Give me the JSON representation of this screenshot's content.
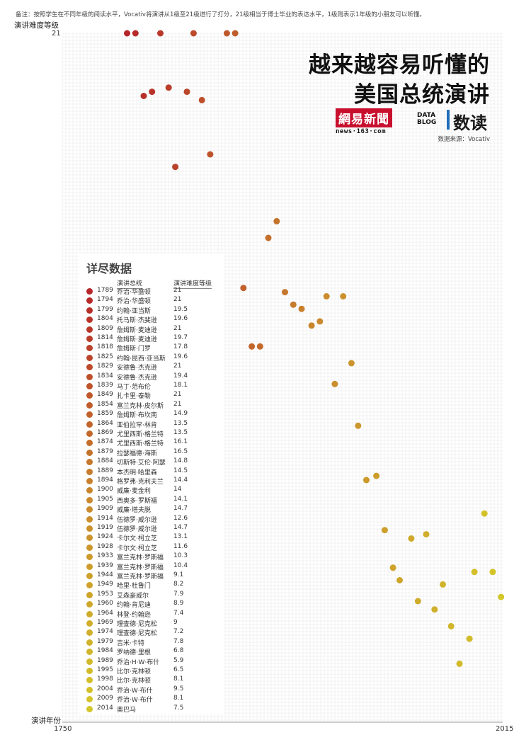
{
  "note": "备注：按照学生在不同年级的阅读水平，Vocativ将演讲从1级至21级进行了打分，21级相当于博士毕业的表达水平，1级则表示1年级的小朋友可以听懂。",
  "title_line1": "越来越容易听懂的",
  "title_line2": "美国总统演讲",
  "logo_cn": "網易新聞",
  "logo_en": "news·163·com",
  "datablog_text": "DATA BLOG",
  "shudu": "数读",
  "source": "数据来源：Vocativ",
  "panel": {
    "title": "详尽数据",
    "col_president": "演讲总统",
    "col_level": "演讲难度等级"
  },
  "colors": {
    "high": "#b5262a",
    "mid": "#c9892c",
    "low": "#d4c72a"
  },
  "chart_data": {
    "type": "scatter",
    "ylabel": "演讲难度等级",
    "xlabel": "演讲年份",
    "xlim": [
      1750,
      2015
    ],
    "x_tick_labels": [
      "1750",
      "2015"
    ],
    "y_tick_labels": [
      "21"
    ],
    "grid": true,
    "points": [
      {
        "year": 1789,
        "president": "乔治·华盛顿",
        "level": "21"
      },
      {
        "year": 1794,
        "president": "乔治·华盛顿",
        "level": "21"
      },
      {
        "year": 1799,
        "president": "约翰·亚当斯",
        "level": "19.5"
      },
      {
        "year": 1804,
        "president": "托马斯·杰斐逊",
        "level": "19.6"
      },
      {
        "year": 1809,
        "president": "詹姆斯·麦迪逊",
        "level": "21"
      },
      {
        "year": 1814,
        "president": "詹姆斯·麦迪逊",
        "level": "19.7"
      },
      {
        "year": 1818,
        "president": "詹姆斯·门罗",
        "level": "17.8"
      },
      {
        "year": 1825,
        "president": "约翰·昆西·亚当斯",
        "level": "19.6"
      },
      {
        "year": 1829,
        "president": "安德鲁·杰克逊",
        "level": "21"
      },
      {
        "year": 1834,
        "president": "安德鲁·杰克逊",
        "level": "19.4"
      },
      {
        "year": 1839,
        "president": "马丁·范布伦",
        "level": "18.1"
      },
      {
        "year": 1849,
        "president": "扎卡里·泰勒",
        "level": "21"
      },
      {
        "year": 1854,
        "president": "富兰克林·皮尔斯",
        "level": "21"
      },
      {
        "year": 1859,
        "president": "詹姆斯·布坎南",
        "level": "14.9"
      },
      {
        "year": 1864,
        "president": "亚伯拉罕·林肯",
        "level": "13.5"
      },
      {
        "year": 1869,
        "president": "尤里西斯·格兰特",
        "level": "13.5"
      },
      {
        "year": 1874,
        "president": "尤里西斯·格兰特",
        "level": "16.1"
      },
      {
        "year": 1879,
        "president": "拉瑟福德·海斯",
        "level": "16.5"
      },
      {
        "year": 1884,
        "president": "切斯特·艾伦·阿瑟",
        "level": "14.8"
      },
      {
        "year": 1889,
        "president": "本杰明·哈里森",
        "level": "14.5"
      },
      {
        "year": 1894,
        "president": "格罗弗·克利夫兰",
        "level": "14.4"
      },
      {
        "year": 1900,
        "president": "威廉·麦金利",
        "level": "14"
      },
      {
        "year": 1905,
        "president": "西奥多·罗斯福",
        "level": "14.1"
      },
      {
        "year": 1909,
        "president": "威廉·塔夫脱",
        "level": "14.7"
      },
      {
        "year": 1914,
        "president": "伍德罗·威尔逊",
        "level": "12.6"
      },
      {
        "year": 1919,
        "president": "伍德罗·威尔逊",
        "level": "14.7"
      },
      {
        "year": 1924,
        "president": "卡尔文·柯立芝",
        "level": "13.1"
      },
      {
        "year": 1928,
        "president": "卡尔文·柯立芝",
        "level": "11.6"
      },
      {
        "year": 1933,
        "president": "富兰克林·罗斯福",
        "level": "10.3"
      },
      {
        "year": 1939,
        "president": "富兰克林·罗斯福",
        "level": "10.4"
      },
      {
        "year": 1944,
        "president": "富兰克林·罗斯福",
        "level": "9.1"
      },
      {
        "year": 1949,
        "president": "哈里·杜鲁门",
        "level": "8.2"
      },
      {
        "year": 1953,
        "president": "艾森豪威尔",
        "level": "7.9"
      },
      {
        "year": 1960,
        "president": "约翰·肯尼迪",
        "level": "8.9"
      },
      {
        "year": 1964,
        "president": "林登·约翰逊",
        "level": "7.4"
      },
      {
        "year": 1969,
        "president": "理查德·尼克松",
        "level": "9"
      },
      {
        "year": 1974,
        "president": "理查德·尼克松",
        "level": "7.2"
      },
      {
        "year": 1979,
        "president": "吉米·卡特",
        "level": "7.8"
      },
      {
        "year": 1984,
        "president": "罗纳德·里根",
        "level": "6.8"
      },
      {
        "year": 1989,
        "president": "乔治·H·W·布什",
        "level": "5.9"
      },
      {
        "year": 1995,
        "president": "比尔·克林顿",
        "level": "6.5"
      },
      {
        "year": 1998,
        "president": "比尔·克林顿",
        "level": "8.1"
      },
      {
        "year": 2004,
        "president": "乔治·W·布什",
        "level": "9.5"
      },
      {
        "year": 2009,
        "president": "乔治·W·布什",
        "level": "8.1"
      },
      {
        "year": 2014,
        "president": "奥巴马",
        "level": "7.5"
      }
    ]
  }
}
